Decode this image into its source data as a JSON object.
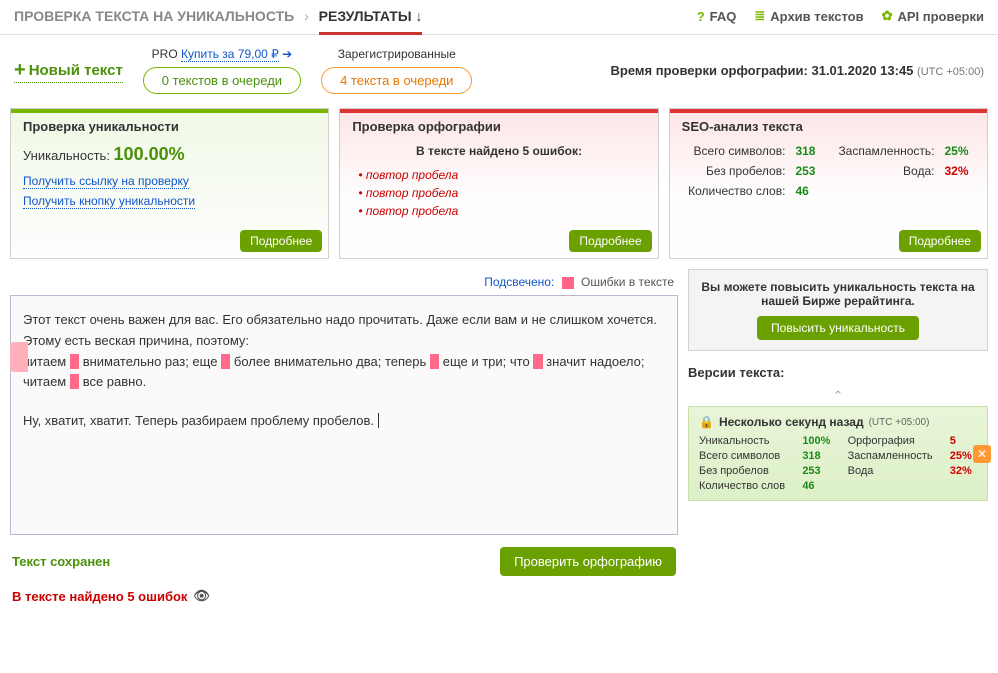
{
  "breadcrumb": {
    "item1": "ПРОВЕРКА ТЕКСТА НА УНИКАЛЬНОСТЬ",
    "item2": "РЕЗУЛЬТАТЫ ↓"
  },
  "toplinks": {
    "faq": "FAQ",
    "archive": "Архив текстов",
    "api": "API проверки"
  },
  "newtext": "Новый текст",
  "pro": {
    "prefix": "PRO ",
    "link": "Купить за 79,00 ₽"
  },
  "queue_green": "0 текстов в очереди",
  "reg_label": "Зарегистрированные",
  "queue_orange": "4 текста в очереди",
  "check_time": {
    "label": "Время проверки орфографии: ",
    "value": "31.01.2020 13:45",
    "tz": "(UTC +05:00)"
  },
  "panel_uniq": {
    "title": "Проверка уникальности",
    "label": "Уникальность: ",
    "value": "100.00%",
    "link1": "Получить ссылку на проверку",
    "link2": "Получить кнопку уникальности",
    "more": "Подробнее"
  },
  "panel_orth": {
    "title": "Проверка орфографии",
    "found": "В тексте найдено 5 ошибок:",
    "errs": [
      "повтор пробела",
      "повтор пробела",
      "повтор пробела"
    ],
    "more": "Подробнее"
  },
  "panel_seo": {
    "title": "SEO-анализ текста",
    "rows": [
      {
        "l": "Всего символов:",
        "v": "318",
        "l2": "Заспамленность:",
        "v2": "25%",
        "c2": "vg"
      },
      {
        "l": "Без пробелов:",
        "v": "253",
        "l2": "Вода:",
        "v2": "32%",
        "c2": "vr"
      },
      {
        "l": "Количество слов:",
        "v": "46",
        "l2": "",
        "v2": ""
      }
    ],
    "more": "Подробнее"
  },
  "legend": {
    "pre": "Подсвечено:",
    "label": "Ошибки в тексте"
  },
  "text": {
    "p1a": "Этот текст очень важен для вас. Его обязательно надо прочитать. Даже если вам и не слишком хочется. Этому есть веская причина, поэтому:",
    "p2a": "читаем ",
    "p2b": " внимательно раз; еще ",
    "p2c": " более внимательно два; теперь ",
    "p2d": " еще и три; что ",
    "p2e": " значит надоело; читаем ",
    "p2f": " все равно.",
    "p3": "Ну, хватит, хватит. Теперь разбираем проблему пробелов."
  },
  "saved": "Текст сохранен",
  "btn_check": "Проверить орфографию",
  "footer_err": "В тексте найдено 5 ошибок",
  "promo": {
    "text": "Вы можете повысить уникальность текста на нашей Бирже рерайтинга.",
    "btn": "Повысить уникальность"
  },
  "versions": {
    "title": "Версии текста:",
    "card": {
      "head": "Несколько секунд назад",
      "tz": "(UTC +05:00)",
      "rows": [
        {
          "l": "Уникальность",
          "v": "100%",
          "vc": "vg",
          "l2": "Орфография",
          "v2": "5",
          "v2c": "vr"
        },
        {
          "l": "Всего символов",
          "v": "318",
          "vc": "vg",
          "l2": "Заспамленность",
          "v2": "25%",
          "v2c": "vr"
        },
        {
          "l": "Без пробелов",
          "v": "253",
          "vc": "vg",
          "l2": "Вода",
          "v2": "32%",
          "v2c": "vr"
        },
        {
          "l": "Количество слов",
          "v": "46",
          "vc": "vg",
          "l2": "",
          "v2": ""
        }
      ]
    }
  }
}
